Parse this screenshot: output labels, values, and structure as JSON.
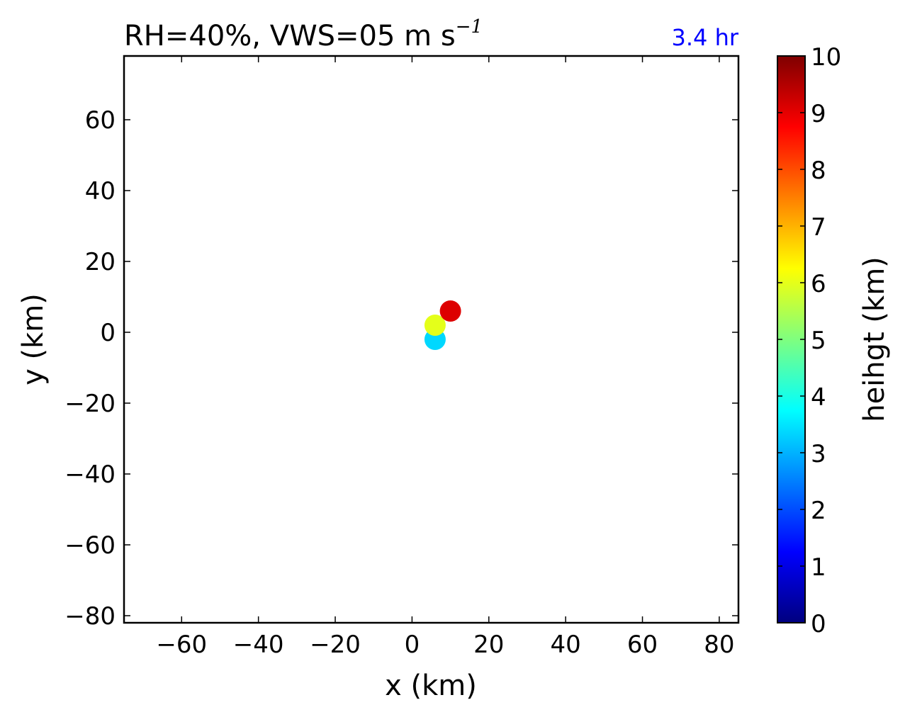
{
  "chart_data": {
    "type": "scatter",
    "title": "RH=40%, VWS=05 m s",
    "title_superscript": "−1",
    "annotation": "3.4 hr",
    "annotation_color": "#0000ff",
    "xlabel": "x (km)",
    "ylabel": "y (km)",
    "xlim": [
      -75,
      85
    ],
    "ylim": [
      -82,
      78
    ],
    "xticks": [
      -60,
      -40,
      -20,
      0,
      20,
      40,
      60,
      80
    ],
    "xtick_labels": [
      "−60",
      "−40",
      "−20",
      "0",
      "20",
      "40",
      "60",
      "80"
    ],
    "yticks": [
      -80,
      -60,
      -40,
      -20,
      0,
      20,
      40,
      60
    ],
    "ytick_labels": [
      "−80",
      "−60",
      "−40",
      "−20",
      "0",
      "20",
      "40",
      "60"
    ],
    "grid": false,
    "points": [
      {
        "x": 6,
        "y": -2,
        "height": 3.5,
        "color": "#00d8ff"
      },
      {
        "x": 6,
        "y": 2,
        "height": 6.0,
        "color": "#e4ff1a"
      },
      {
        "x": 10,
        "y": 6,
        "height": 9.0,
        "color": "#dd0000"
      }
    ],
    "colorbar": {
      "label": "heihgt (km)",
      "range": [
        0,
        10
      ],
      "ticks": [
        0,
        1,
        2,
        3,
        4,
        5,
        6,
        7,
        8,
        9,
        10
      ],
      "tick_labels": [
        "0",
        "1",
        "2",
        "3",
        "4",
        "5",
        "6",
        "7",
        "8",
        "9",
        "10"
      ],
      "colormap": "jet",
      "colors": [
        "#00007f",
        "#0000ff",
        "#007fff",
        "#00ffff",
        "#7fff7f",
        "#ffff00",
        "#ff7f00",
        "#ff0000",
        "#7f0000"
      ]
    }
  }
}
